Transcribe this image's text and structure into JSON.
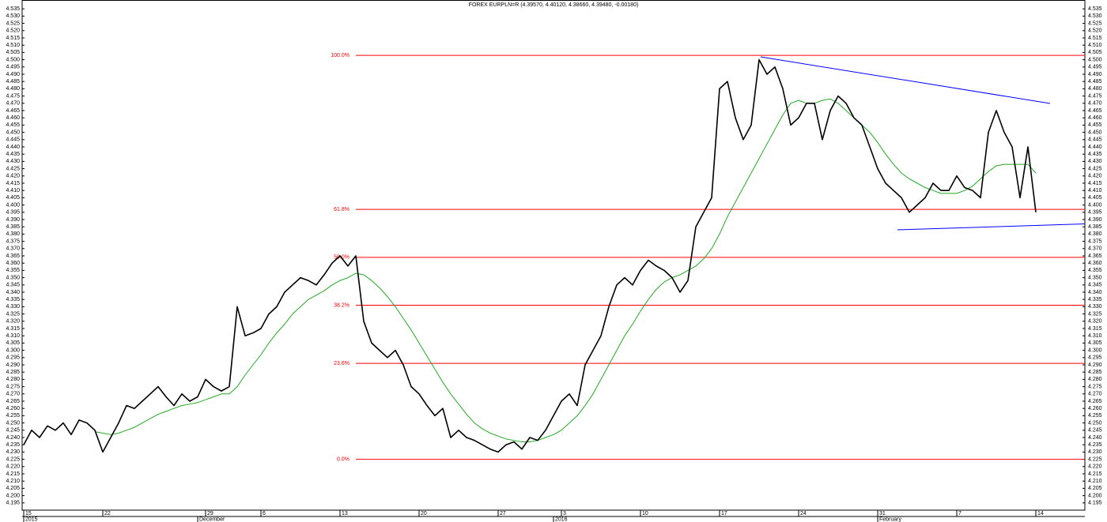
{
  "chart_data": {
    "type": "line",
    "title": "FOREX EURPLN=R (4.39570, 4.40120, 4.38660, 4.39480, -0.00180)",
    "categories": [
      "15",
      null,
      null,
      null,
      null,
      null,
      null,
      null,
      null,
      null,
      "22",
      null,
      null,
      null,
      null,
      null,
      null,
      null,
      null,
      null,
      null,
      null,
      null,
      "29",
      null,
      null,
      null,
      null,
      null,
      null,
      "6",
      null,
      null,
      null,
      null,
      null,
      null,
      null,
      null,
      null,
      "13",
      null,
      null,
      null,
      null,
      null,
      null,
      null,
      null,
      null,
      "20",
      null,
      null,
      null,
      null,
      null,
      null,
      null,
      null,
      null,
      "27",
      null,
      null,
      null,
      null,
      null,
      null,
      null,
      "3",
      null,
      null,
      null,
      null,
      null,
      null,
      null,
      null,
      null,
      "10",
      null,
      null,
      null,
      null,
      null,
      null,
      null,
      null,
      null,
      "17",
      null,
      null,
      null,
      null,
      null,
      null,
      null,
      null,
      null,
      "24",
      null,
      null,
      null,
      null,
      null,
      null,
      null,
      null,
      null,
      "31",
      null,
      null,
      null,
      null,
      null,
      null,
      null,
      null,
      null,
      "7",
      null,
      null,
      null,
      null,
      null,
      null,
      null,
      null,
      null,
      "14"
    ],
    "periods": [
      "2015",
      null,
      null,
      null,
      null,
      null,
      null,
      null,
      null,
      null,
      null,
      null,
      null,
      null,
      null,
      null,
      null,
      null,
      null,
      null,
      null,
      null,
      "December",
      null,
      null,
      null,
      null,
      null,
      null,
      null,
      null,
      null,
      null,
      null,
      null,
      null,
      null,
      null,
      null,
      null,
      null,
      null,
      null,
      null,
      null,
      null,
      null,
      null,
      null,
      null,
      null,
      null,
      null,
      null,
      null,
      null,
      null,
      null,
      null,
      null,
      null,
      null,
      null,
      null,
      null,
      null,
      null,
      "2016",
      null,
      null,
      null,
      null,
      null,
      null,
      null,
      null,
      null,
      null,
      null,
      null,
      null,
      null,
      null,
      null,
      null,
      null,
      null,
      null,
      null,
      null,
      null,
      null,
      null,
      null,
      null,
      null,
      null,
      null,
      null,
      null,
      null,
      null,
      null,
      null,
      null,
      null,
      null,
      null,
      "February",
      null,
      null,
      null,
      null,
      null,
      null,
      null,
      null,
      null,
      null,
      null,
      null,
      null,
      null,
      null,
      null,
      null,
      null,
      null,
      null
    ],
    "series": [
      {
        "color": "#000000",
        "values": [
          4.235,
          4.245,
          4.24,
          4.248,
          4.245,
          4.25,
          4.242,
          4.252,
          4.25,
          4.245,
          4.23,
          4.24,
          4.25,
          4.262,
          4.26,
          4.265,
          4.27,
          4.275,
          4.268,
          4.262,
          4.27,
          4.265,
          4.268,
          4.28,
          4.275,
          4.272,
          4.275,
          4.33,
          4.31,
          4.312,
          4.315,
          4.325,
          4.33,
          4.34,
          4.345,
          4.35,
          4.348,
          4.345,
          4.352,
          4.36,
          4.365,
          4.358,
          4.365,
          4.32,
          4.305,
          4.3,
          4.295,
          4.3,
          4.29,
          4.275,
          4.27,
          4.262,
          4.255,
          4.26,
          4.24,
          4.245,
          4.24,
          4.238,
          4.235,
          4.232,
          4.23,
          4.235,
          4.237,
          4.232,
          4.24,
          4.238,
          4.245,
          4.255,
          4.265,
          4.27,
          4.262,
          4.29,
          4.3,
          4.31,
          4.33,
          4.345,
          4.35,
          4.345,
          4.355,
          4.362,
          4.358,
          4.355,
          4.35,
          4.34,
          4.348,
          4.385,
          4.395,
          4.405,
          4.48,
          4.485,
          4.46,
          4.445,
          4.455,
          4.5,
          4.49,
          4.495,
          4.48,
          4.455,
          4.46,
          4.47,
          4.47,
          4.445,
          4.465,
          4.475,
          4.47,
          4.46,
          4.455,
          4.44,
          4.425,
          4.415,
          4.41,
          4.405,
          4.395,
          4.4,
          4.405,
          4.415,
          4.41,
          4.41,
          4.42,
          4.412,
          4.41,
          4.405,
          4.45,
          4.465,
          4.45,
          4.44,
          4.405,
          4.44,
          4.395
        ]
      },
      {
        "color": "#22aa22",
        "values": [
          null,
          null,
          null,
          null,
          null,
          null,
          null,
          null,
          null,
          4.244,
          4.243,
          4.242,
          4.243,
          4.245,
          4.247,
          4.25,
          4.253,
          4.256,
          4.258,
          4.26,
          4.262,
          4.263,
          4.264,
          4.266,
          4.268,
          4.27,
          4.27,
          4.275,
          4.283,
          4.29,
          4.297,
          4.305,
          4.312,
          4.318,
          4.325,
          4.33,
          4.335,
          4.338,
          4.341,
          4.345,
          4.348,
          4.35,
          4.353,
          4.352,
          4.348,
          4.343,
          4.337,
          4.33,
          4.322,
          4.314,
          4.305,
          4.296,
          4.287,
          4.278,
          4.27,
          4.263,
          4.256,
          4.25,
          4.246,
          4.243,
          4.241,
          4.239,
          4.238,
          4.237,
          4.237,
          4.238,
          4.24,
          4.242,
          4.245,
          4.25,
          4.255,
          4.262,
          4.27,
          4.28,
          4.29,
          4.3,
          4.31,
          4.318,
          4.327,
          4.335,
          4.342,
          4.347,
          4.35,
          4.352,
          4.355,
          4.358,
          4.363,
          4.37,
          4.38,
          4.392,
          4.402,
          4.412,
          4.422,
          4.432,
          4.442,
          4.452,
          4.462,
          4.47,
          4.472,
          4.47,
          4.47,
          4.472,
          4.473,
          4.47,
          4.465,
          4.46,
          4.455,
          4.45,
          4.443,
          4.435,
          4.428,
          4.422,
          4.418,
          4.415,
          4.412,
          4.41,
          4.408,
          4.408,
          4.408,
          4.41,
          4.413,
          4.418,
          4.423,
          4.427,
          4.428,
          4.428,
          4.428,
          4.428,
          4.422
        ]
      }
    ],
    "fib_levels": [
      {
        "label": "100.0%",
        "value": 4.503
      },
      {
        "label": "61.8%",
        "value": 4.397
      },
      {
        "label": "50.0%",
        "value": 4.364
      },
      {
        "label": "38.2%",
        "value": 4.331
      },
      {
        "label": "23.6%",
        "value": 4.291
      },
      {
        "label": "0.0%",
        "value": 4.225
      }
    ],
    "fib_color": "#ff0000",
    "ylim": [
      4.19,
      4.54
    ],
    "yticks": [
      4.195,
      {
        "value": 4.2,
        "label": "4.200"
      },
      4.205,
      {
        "value": 4.21,
        "label": "4.210"
      },
      4.215,
      {
        "value": 4.22,
        "label": "4.220"
      },
      4.225,
      {
        "value": 4.23,
        "label": "4.230"
      },
      4.235,
      {
        "value": 4.24,
        "label": "4.240"
      },
      4.245,
      {
        "value": 4.25,
        "label": "4.250"
      },
      4.255,
      {
        "value": 4.26,
        "label": "4.260"
      },
      4.265,
      {
        "value": 4.27,
        "label": "4.270"
      },
      4.275,
      {
        "value": 4.28,
        "label": "4.280"
      },
      4.285,
      {
        "value": 4.29,
        "label": "4.290"
      },
      4.295,
      {
        "value": 4.3,
        "label": "4.300"
      },
      4.305,
      {
        "value": 4.31,
        "label": "4.310"
      },
      4.315,
      {
        "value": 4.32,
        "label": "4.320"
      },
      4.325,
      {
        "value": 4.33,
        "label": "4.330"
      },
      4.335,
      {
        "value": 4.34,
        "label": "4.340"
      },
      4.345,
      {
        "value": 4.35,
        "label": "4.350"
      },
      4.355,
      {
        "value": 4.36,
        "label": "4.360"
      },
      4.365,
      {
        "value": 4.37,
        "label": "4.370"
      },
      4.375,
      {
        "value": 4.38,
        "label": "4.380"
      },
      4.385,
      {
        "value": 4.39,
        "label": "4.390"
      },
      4.395,
      {
        "value": 4.4,
        "label": "4.400"
      },
      4.405,
      {
        "value": 4.41,
        "label": "4.410"
      },
      4.415,
      {
        "value": 4.42,
        "label": "4.420"
      },
      4.425,
      {
        "value": 4.43,
        "label": "4.430"
      },
      4.435,
      {
        "value": 4.44,
        "label": "4.440"
      },
      4.445,
      {
        "value": 4.45,
        "label": "4.450"
      },
      4.455,
      {
        "value": 4.46,
        "label": "4.460"
      },
      4.465,
      {
        "value": 4.47,
        "label": "4.470"
      },
      4.475,
      {
        "value": 4.48,
        "label": "4.480"
      },
      4.485,
      {
        "value": 4.49,
        "label": "4.490"
      },
      4.495,
      {
        "value": 4.5,
        "label": "4.500"
      },
      4.505,
      {
        "value": 4.51,
        "label": "4.510"
      },
      4.515,
      {
        "value": 4.52,
        "label": "4.520"
      },
      4.525,
      {
        "value": 4.53,
        "label": "4.530"
      },
      4.535
    ]
  }
}
